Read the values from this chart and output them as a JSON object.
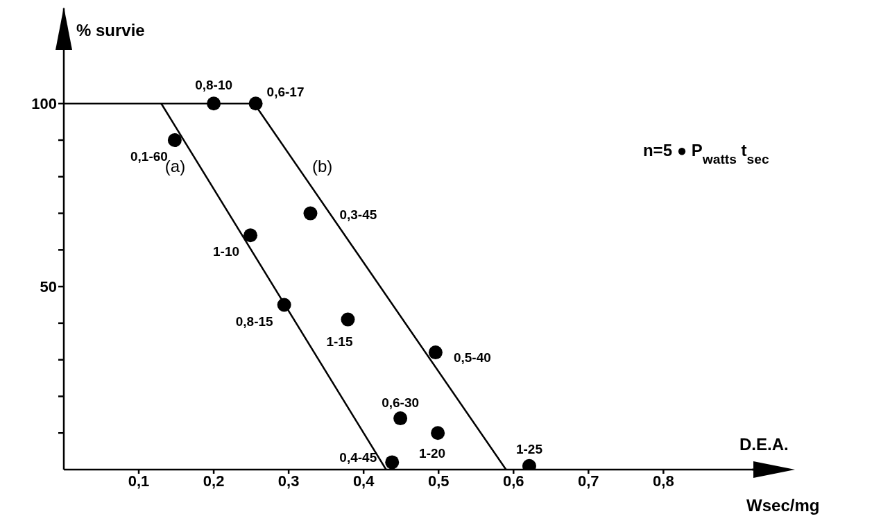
{
  "chart_data": {
    "type": "scatter",
    "ylabel": "% survie",
    "xlabel": "D.E.A.",
    "annotations": [
      "n=5 ● P$_{watts}$ t$_{sec}$",
      "Wsec/mg"
    ],
    "xlim": [
      0,
      0.92
    ],
    "ylim": [
      0,
      126
    ],
    "xticks": [
      {
        "value": 0.1,
        "label": "0,1"
      },
      {
        "value": 0.2,
        "label": "0,2"
      },
      {
        "value": 0.3,
        "label": "0,3"
      },
      {
        "value": 0.4,
        "label": "0,4"
      },
      {
        "value": 0.5,
        "label": "0,5"
      },
      {
        "value": 0.6,
        "label": "0,6"
      },
      {
        "value": 0.7,
        "label": "0,7"
      },
      {
        "value": 0.8,
        "label": "0,8"
      }
    ],
    "yticks": [
      {
        "value": 10,
        "label": null
      },
      {
        "value": 20,
        "label": null
      },
      {
        "value": 30,
        "label": null
      },
      {
        "value": 40,
        "label": null
      },
      50,
      {
        "value": 60,
        "label": null
      },
      {
        "value": 70,
        "label": null
      },
      {
        "value": 80,
        "label": null
      },
      {
        "value": 90,
        "label": null
      },
      100
    ],
    "marker": "circle",
    "grid": false,
    "legend": false,
    "series": [
      {
        "color": "#000000",
        "x": [
          0.2,
          0.256,
          0.148,
          0.249,
          0.329,
          0.294,
          0.379,
          0.496,
          0.449,
          0.499,
          0.438,
          0.621
        ],
        "values": [
          100,
          100,
          90,
          64,
          70,
          45,
          41,
          32,
          14,
          10,
          2,
          1
        ],
        "value_labels": [
          "0,8-10",
          "0,6-17",
          "0,1-60",
          "1-10",
          "0,3-45",
          "0,8-15",
          "1-15",
          "0,5-40",
          "0,6-30",
          "1-20",
          "0,4-45",
          "1-25"
        ]
      },
      {
        "type": "line",
        "name": "(a)",
        "color": "#000000",
        "marker": "none",
        "x": [
          0.13,
          0.43
        ],
        "values": [
          100,
          0
        ]
      },
      {
        "type": "line",
        "name": "(b)",
        "color": "#000000",
        "marker": "none",
        "x": [
          0,
          0.254,
          0.59
        ],
        "values": [
          100,
          100,
          0
        ]
      }
    ]
  }
}
